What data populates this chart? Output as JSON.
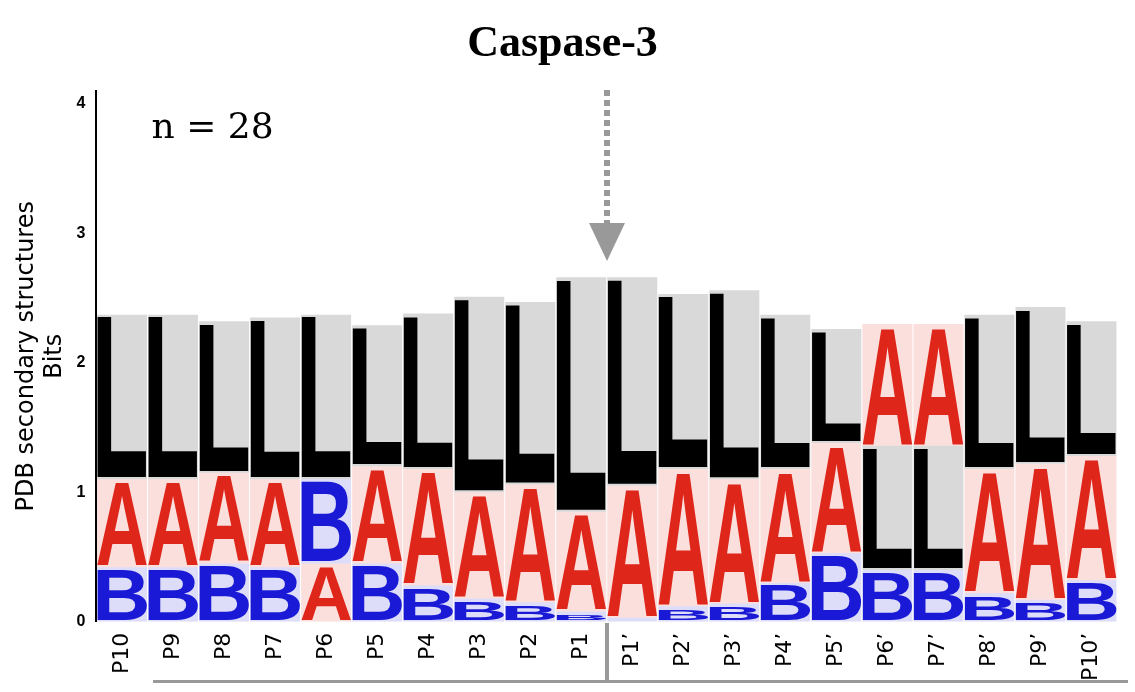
{
  "chart_data": {
    "type": "bar",
    "title": "Caspase-3",
    "ylabel": "PDB secondary structures\nBits",
    "annotations": [
      "n = 28"
    ],
    "categories": [
      "P10",
      "P9",
      "P8",
      "P7",
      "P6",
      "P5",
      "P4",
      "P3",
      "P2",
      "P1",
      "P1’",
      "P2’",
      "P3’",
      "P4’",
      "P5’",
      "P6’",
      "P7’",
      "P8’",
      "P9’",
      "P10’"
    ],
    "series": [
      {
        "name": "B",
        "color": "#1a1ad6",
        "base": [
          0,
          0,
          0,
          0,
          0.45,
          0,
          0,
          0,
          0,
          0,
          0,
          0,
          0,
          0,
          0,
          0,
          0,
          0,
          0,
          0
        ],
        "values": [
          0.42,
          0.42,
          0.45,
          0.42,
          0.65,
          0.45,
          0.28,
          0.18,
          0.15,
          0.08,
          0.03,
          0.12,
          0.14,
          0.3,
          0.53,
          0.4,
          0.4,
          0.22,
          0.17,
          0.32
        ]
      },
      {
        "name": "A",
        "color": "#e0261a",
        "base": [
          0.42,
          0.42,
          0.45,
          0.42,
          0,
          0.45,
          0.28,
          0.18,
          0.15,
          0.08,
          0.03,
          0.12,
          0.14,
          0.3,
          0.53,
          1.36,
          1.36,
          0.22,
          0.17,
          0.32
        ],
        "values": [
          0.68,
          0.68,
          0.7,
          0.68,
          0.45,
          0.75,
          0.9,
          0.82,
          0.91,
          0.77,
          1.02,
          1.06,
          0.96,
          0.88,
          0.85,
          0.94,
          0.94,
          0.96,
          1.05,
          0.96
        ]
      },
      {
        "name": "L",
        "color": "#000000",
        "base": [
          1.1,
          1.1,
          1.15,
          1.1,
          1.1,
          1.2,
          1.18,
          1.0,
          1.06,
          0.85,
          1.05,
          1.18,
          1.1,
          1.18,
          1.38,
          0.4,
          0.4,
          1.18,
          1.22,
          1.28
        ],
        "values": [
          1.27,
          1.27,
          1.17,
          1.25,
          1.27,
          1.09,
          1.2,
          1.51,
          1.41,
          1.81,
          1.61,
          1.35,
          1.46,
          1.19,
          0.88,
          0.96,
          0.96,
          1.19,
          1.21,
          1.04
        ]
      }
    ],
    "ylim": [
      0,
      4.1
    ],
    "yticks": [
      0,
      1,
      2,
      3,
      4
    ],
    "grid": false,
    "legend": false
  }
}
